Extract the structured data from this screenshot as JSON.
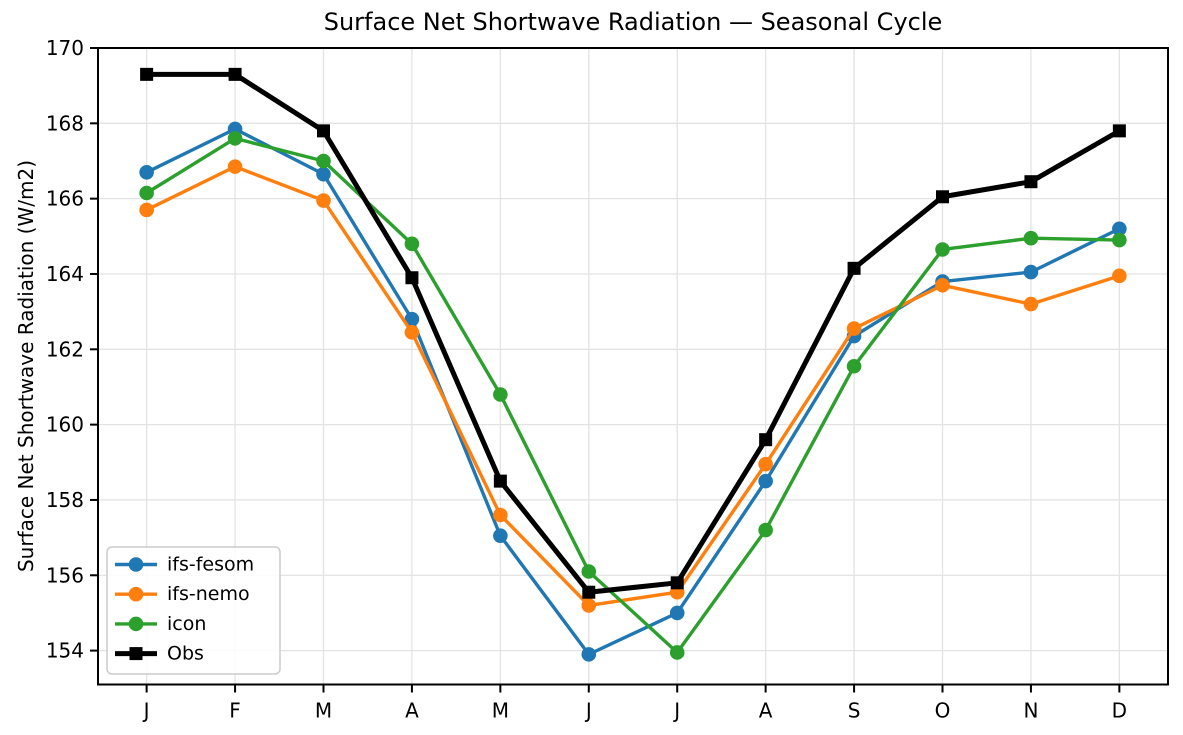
{
  "figure": {
    "background": "#ffffff"
  },
  "chart_data": {
    "type": "line",
    "title": "Surface Net Shortwave Radiation — Seasonal Cycle",
    "xlabel": "",
    "ylabel": "Surface Net Shortwave Radiation (W/m2)",
    "categories": [
      "J",
      "F",
      "M",
      "A",
      "M",
      "J",
      "J",
      "A",
      "S",
      "O",
      "N",
      "D"
    ],
    "yticks": [
      154,
      156,
      158,
      160,
      162,
      164,
      166,
      168,
      170
    ],
    "ylim": [
      153.1,
      170.0
    ],
    "grid": true,
    "grid_color": "#e3e3e3",
    "legend_position": "lower left",
    "series": [
      {
        "name": "ifs-fesom",
        "color": "#1f77b4",
        "marker": "circle",
        "values": [
          166.7,
          167.85,
          166.65,
          162.8,
          157.05,
          153.9,
          155.0,
          158.5,
          162.35,
          163.8,
          164.05,
          165.2
        ]
      },
      {
        "name": "ifs-nemo",
        "color": "#ff7f0e",
        "marker": "circle",
        "values": [
          165.7,
          166.85,
          165.95,
          162.45,
          157.6,
          155.2,
          155.55,
          158.95,
          162.55,
          163.7,
          163.2,
          163.95
        ]
      },
      {
        "name": "icon",
        "color": "#2ca02c",
        "marker": "circle",
        "values": [
          166.15,
          167.6,
          167.0,
          164.8,
          160.8,
          156.1,
          153.95,
          157.2,
          161.55,
          164.65,
          164.95,
          164.9
        ]
      },
      {
        "name": "Obs",
        "color": "#000000",
        "marker": "square",
        "values": [
          169.3,
          169.3,
          167.8,
          163.9,
          158.5,
          155.55,
          155.8,
          159.6,
          164.15,
          166.05,
          166.45,
          167.8
        ]
      }
    ]
  }
}
